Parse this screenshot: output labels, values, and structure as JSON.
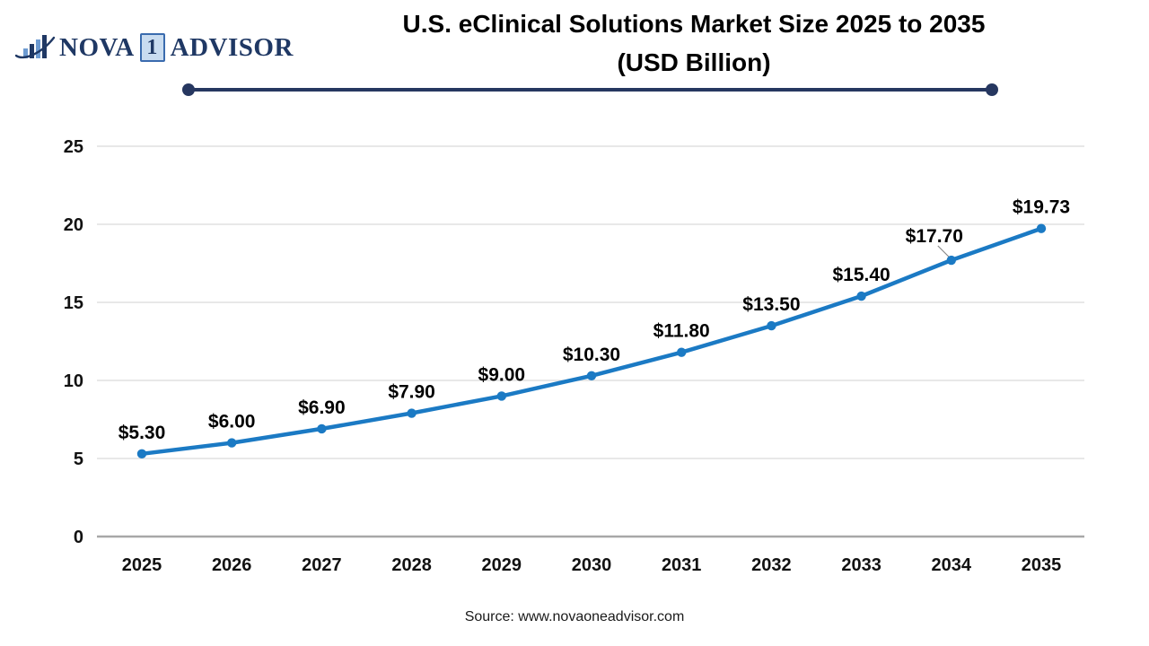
{
  "logo": {
    "icon": "bar-chart-swoosh-icon",
    "brand_part1": "NOVA",
    "brand_num": "1",
    "brand_part2": "ADVISOR"
  },
  "header": {
    "title_line1": "U.S. eClinical Solutions Market Size 2025 to 2035",
    "title_line2": "(USD Billion)"
  },
  "chart_data": {
    "type": "line",
    "title": "U.S. eClinical Solutions Market Size 2025 to 2035 (USD Billion)",
    "categories": [
      "2025",
      "2026",
      "2027",
      "2028",
      "2029",
      "2030",
      "2031",
      "2032",
      "2033",
      "2034",
      "2035"
    ],
    "values": [
      5.3,
      6.0,
      6.9,
      7.9,
      9.0,
      10.3,
      11.8,
      13.5,
      15.4,
      17.7,
      19.73
    ],
    "point_labels": [
      "$5.30",
      "$6.00",
      "$6.90",
      "$7.90",
      "$9.00",
      "$10.30",
      "$11.80",
      "$13.50",
      "$15.40",
      "$17.70",
      "$19.73"
    ],
    "xlabel": "",
    "ylabel": "",
    "ylim": [
      0,
      25
    ],
    "y_ticks": [
      0,
      5,
      10,
      15,
      20,
      25
    ],
    "grid": "horizontal",
    "legend": "none",
    "marker": "circle",
    "line_color": "#1B7AC4",
    "label_offsets": {
      "2034": {
        "dx": -19,
        "dy": -3,
        "leader": true
      }
    }
  },
  "footer": {
    "source": "Source: www.novaoneadvisor.com"
  },
  "colors": {
    "accent_navy": "#1F3864",
    "rule_navy": "#263760",
    "line_blue": "#1B7AC4",
    "grid": "#E0E0E0",
    "baseline": "#A8A8A8",
    "text": "#111111",
    "leader": "#808080"
  }
}
